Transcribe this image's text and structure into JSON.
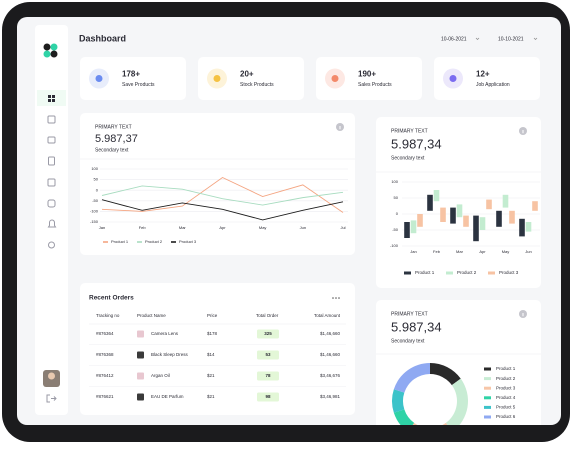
{
  "header": {
    "title": "Dashboard",
    "dates": [
      "10-06-2021",
      "10-10-2021"
    ]
  },
  "stats": [
    {
      "value": "178+",
      "label": "Save Products"
    },
    {
      "value": "20+",
      "label": "Stock Products"
    },
    {
      "value": "190+",
      "label": "Sales Products"
    },
    {
      "value": "12+",
      "label": "Job Application"
    }
  ],
  "chart_data": [
    {
      "type": "line",
      "label": "PRIMARY TEXT",
      "title": "5.987,37",
      "subtitle": "Secondary text",
      "categories": [
        "Jan",
        "Feb",
        "Mar",
        "Apr",
        "May",
        "Jun",
        "Jul"
      ],
      "ylim": [
        -150,
        100
      ],
      "yticks": [
        100,
        50,
        0,
        -50,
        -100,
        -150
      ],
      "grid": true,
      "series": [
        {
          "name": "Product 1",
          "color": "#f4a582",
          "values": [
            -90,
            -100,
            -75,
            60,
            -30,
            25,
            -105
          ]
        },
        {
          "name": "Product 2",
          "color": "#a8dcc0",
          "values": [
            -25,
            20,
            5,
            -40,
            -70,
            -35,
            -10
          ]
        },
        {
          "name": "Product 3",
          "color": "#1e1e1e",
          "values": [
            -45,
            -95,
            -60,
            -90,
            -140,
            -95,
            -55
          ]
        }
      ]
    },
    {
      "type": "range-bar",
      "label": "PRIMARY TEXT",
      "title": "5.987,34",
      "subtitle": "Secondary text",
      "categories": [
        "Jan",
        "Feb",
        "Mar",
        "Apr",
        "May",
        "Jun"
      ],
      "ylim": [
        -100,
        100
      ],
      "yticks": [
        100,
        50,
        0,
        -50,
        -100
      ],
      "grid": true,
      "series": [
        {
          "name": "Product 1",
          "color": "#2b3340",
          "low": [
            -75,
            10,
            -30,
            -85,
            -40,
            -70
          ],
          "high": [
            -25,
            60,
            20,
            -5,
            10,
            -15
          ]
        },
        {
          "name": "Product 2",
          "color": "#c3ecd0",
          "low": [
            -60,
            40,
            -10,
            -50,
            20,
            -55
          ],
          "high": [
            -20,
            75,
            30,
            -10,
            60,
            -25
          ]
        },
        {
          "name": "Product 3",
          "color": "#f7c3a3",
          "low": [
            -40,
            -25,
            -40,
            15,
            -30,
            10
          ],
          "high": [
            0,
            20,
            -5,
            45,
            10,
            40
          ]
        }
      ]
    },
    {
      "type": "donut",
      "label": "PRIMARY TEXT",
      "title": "5.987,34",
      "subtitle": "Secondary text",
      "categories": [
        "Product 1",
        "Product 2",
        "Product 3",
        "Product 4",
        "Product 5",
        "Product 6"
      ],
      "values": [
        15,
        25,
        20,
        10,
        10,
        20
      ],
      "colors": [
        "#2a2a2a",
        "#c8ecd4",
        "#f7c6a8",
        "#2fd3a6",
        "#3cc3c9",
        "#8fa9f2"
      ]
    }
  ],
  "orders": {
    "title": "Recent Orders",
    "columns": [
      "Tracking no",
      "Product Name",
      "Price",
      "Total Order",
      "Total Amount"
    ],
    "rows": [
      [
        "#876364",
        "Camera Lens",
        "$178",
        325,
        "$1,46,660"
      ],
      [
        "#876368",
        "Black Sleep Dress",
        "$14",
        53,
        "$1,46,660"
      ],
      [
        "#876412",
        "Argan Oil",
        "$21",
        78,
        "$3,46,676"
      ],
      [
        "#876621",
        "EAU DE Parfum",
        "$21",
        98,
        "$3,46,981"
      ]
    ]
  }
}
